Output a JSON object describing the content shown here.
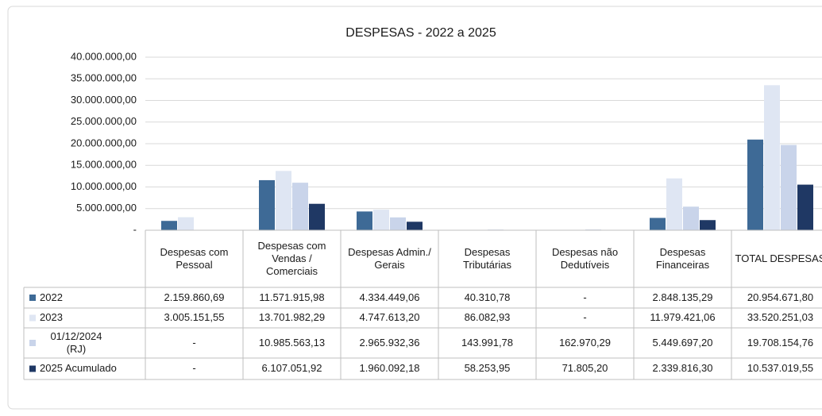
{
  "chart_data": {
    "type": "bar",
    "title": "DESPESAS - 2022 a 2025",
    "categories": [
      "Despesas com Pessoal",
      "Despesas com Vendas / Comerciais",
      "Despesas Admin./ Gerais",
      "Despesas Tributárias",
      "Despesas não Dedutíveis",
      "Despesas Financeiras",
      "TOTAL DESPESAS"
    ],
    "series": [
      {
        "name": "2022",
        "color": "#3e6a96",
        "values": [
          2159860.69,
          11571915.98,
          4334449.06,
          40310.78,
          0,
          2848135.29,
          20954671.8
        ],
        "value_labels": [
          "2.159.860,69",
          "11.571.915,98",
          "4.334.449,06",
          "40.310,78",
          "-",
          "2.848.135,29",
          "20.954.671,80"
        ]
      },
      {
        "name": "2023",
        "color": "#dfe6f3",
        "values": [
          3005151.55,
          13701982.29,
          4747613.2,
          86082.93,
          0,
          11979421.06,
          33520251.03
        ],
        "value_labels": [
          "3.005.151,55",
          "13.701.982,29",
          "4.747.613,20",
          "86.082,93",
          "-",
          "11.979.421,06",
          "33.520.251,03"
        ]
      },
      {
        "name": "01/12/2024 (RJ)",
        "color": "#c9d4ea",
        "values": [
          0,
          10985563.13,
          2965932.36,
          143991.78,
          162970.29,
          5449697.2,
          19708154.76
        ],
        "value_labels": [
          "-",
          "10.985.563,13",
          "2.965.932,36",
          "143.991,78",
          "162.970,29",
          "5.449.697,20",
          "19.708.154,76"
        ]
      },
      {
        "name": "2025 Acumulado",
        "color": "#1f3864",
        "values": [
          0,
          6107051.92,
          1960092.18,
          58253.95,
          71805.2,
          2339816.3,
          10537019.55
        ],
        "value_labels": [
          "-",
          "6.107.051,92",
          "1.960.092,18",
          "58.253,95",
          "71.805,20",
          "2.339.816,30",
          "10.537.019,55"
        ]
      }
    ],
    "ylim": [
      0,
      40000000
    ],
    "yticks": [
      {
        "value": 0,
        "label": "-"
      },
      {
        "value": 5000000,
        "label": "5.000.000,00"
      },
      {
        "value": 10000000,
        "label": "10.000.000,00"
      },
      {
        "value": 15000000,
        "label": "15.000.000,00"
      },
      {
        "value": 20000000,
        "label": "20.000.000,00"
      },
      {
        "value": 25000000,
        "label": "25.000.000,00"
      },
      {
        "value": 30000000,
        "label": "30.000.000,00"
      },
      {
        "value": 35000000,
        "label": "35.000.000,00"
      },
      {
        "value": 40000000,
        "label": "40.000.000,00"
      }
    ],
    "grid": true
  }
}
